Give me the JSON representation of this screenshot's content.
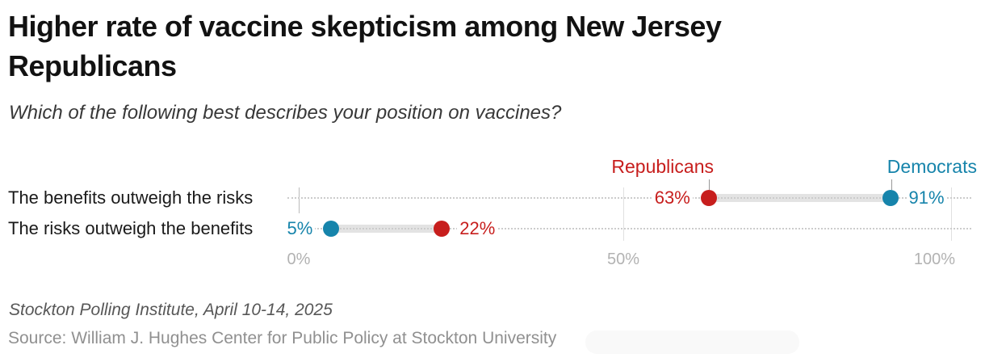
{
  "chart_data": {
    "type": "dumbbell",
    "title": "Higher rate of vaccine skepticism among New Jersey Republicans",
    "subtitle": "Which of the following best describes your position on vaccines?",
    "categories": [
      "The benefits outweigh the risks",
      "The risks outweigh the benefits"
    ],
    "series": [
      {
        "name": "Republicans",
        "color": "#c71e1d",
        "values": [
          63,
          22
        ]
      },
      {
        "name": "Democrats",
        "color": "#1684ab",
        "values": [
          91,
          5
        ]
      }
    ],
    "value_suffix": "%",
    "x_axis": {
      "range": [
        0,
        100
      ],
      "ticks": [
        "0%",
        "50%",
        "100%"
      ],
      "grid": true
    },
    "legend_position": "top",
    "connector_color": "#e3e3e3",
    "notes": "Stockton Polling Institute, April 10-14, 2025",
    "source": "Source: William J. Hughes Center for Public Policy at Stockton University"
  }
}
